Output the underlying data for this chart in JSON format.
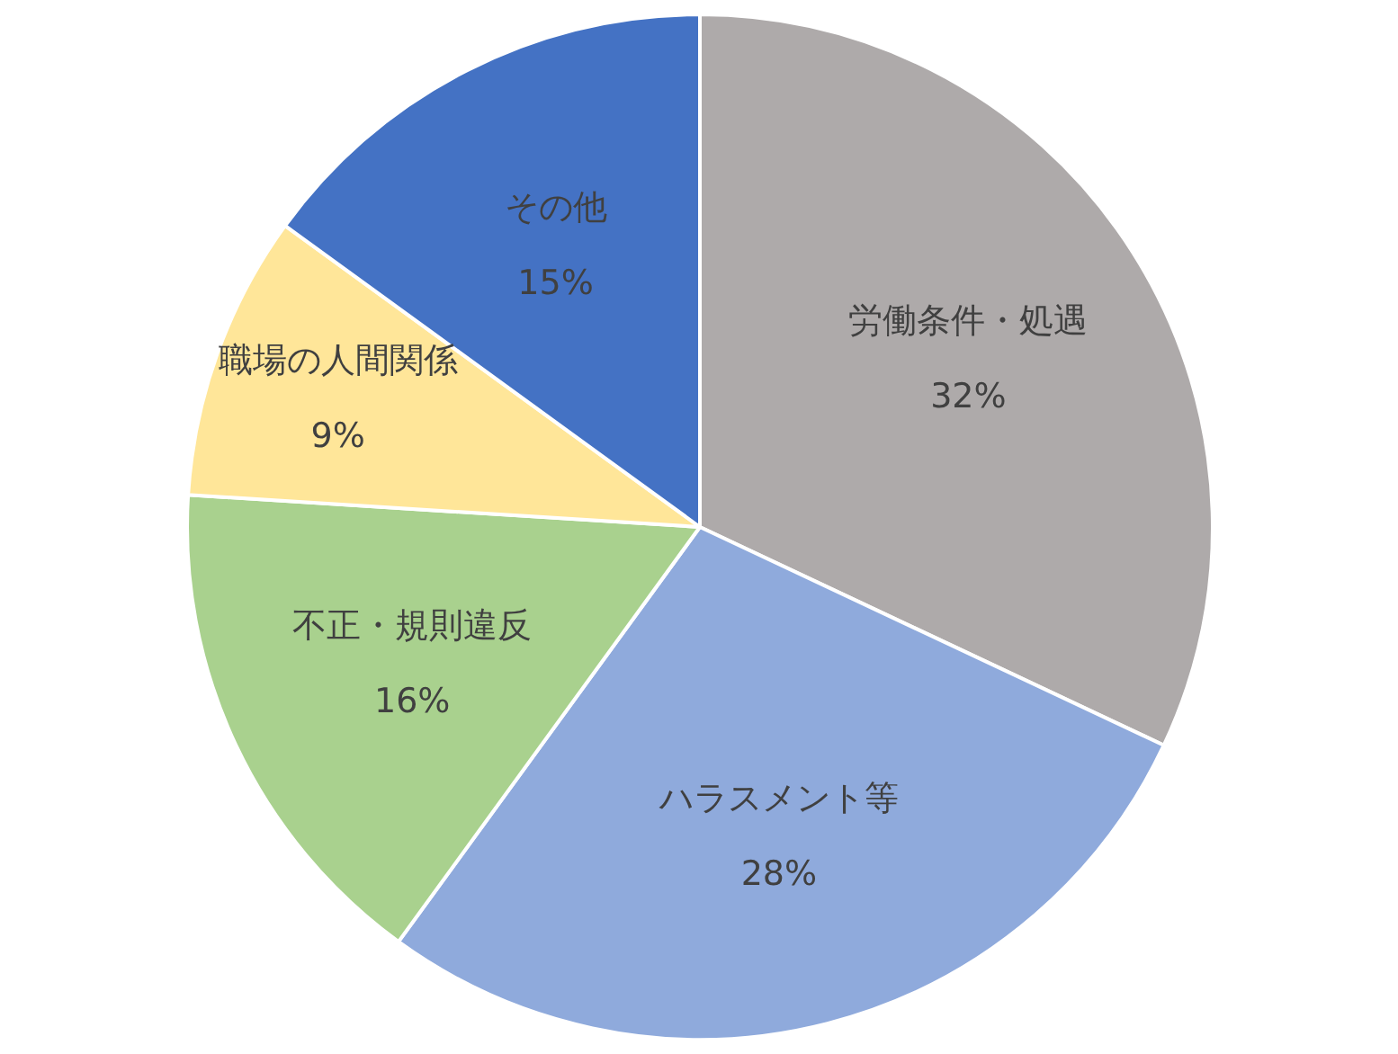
{
  "chart_data": {
    "type": "pie",
    "categories": [
      "労働条件・処遇",
      "ハラスメント等",
      "不正・規則違反",
      "職場の人間関係",
      "その他"
    ],
    "values": [
      32,
      28,
      16,
      9,
      15
    ],
    "value_labels": [
      "32%",
      "28%",
      "16%",
      "9%",
      "15%"
    ],
    "colors": [
      "#aeaaaa",
      "#8faadc",
      "#a9d18e",
      "#ffe699",
      "#4472c4"
    ],
    "legend": false
  }
}
